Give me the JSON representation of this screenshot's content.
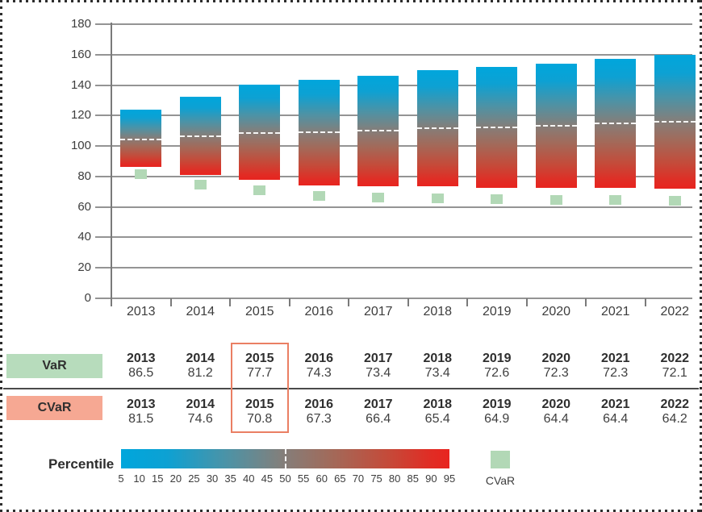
{
  "chart_data": {
    "type": "bar",
    "title": "",
    "xlabel": "",
    "ylabel": "",
    "categories": [
      "2013",
      "2014",
      "2015",
      "2016",
      "2017",
      "2018",
      "2019",
      "2020",
      "2021",
      "2022"
    ],
    "series": [
      {
        "name": "5th percentile (bar top)",
        "values": [
          124,
          132.5,
          140.5,
          143.5,
          146,
          150,
          152,
          154,
          157.5,
          160
        ]
      },
      {
        "name": "50th percentile (white dashed line)",
        "values": [
          105,
          107,
          109,
          109.5,
          110.5,
          112,
          113,
          114,
          115.5,
          116.5
        ]
      },
      {
        "name": "95th percentile / VaR (bar bottom)",
        "values": [
          86.5,
          81.2,
          77.7,
          74.3,
          73.4,
          73.4,
          72.6,
          72.3,
          72.3,
          72.1
        ]
      },
      {
        "name": "CVaR (green square marker)",
        "values": [
          81.5,
          74.6,
          70.8,
          67.3,
          66.4,
          65.4,
          64.9,
          64.4,
          64.4,
          64.2
        ]
      }
    ],
    "ylim": [
      0,
      180
    ],
    "yticks": [
      0,
      20,
      40,
      60,
      80,
      100,
      120,
      140,
      160,
      180
    ],
    "grid": true,
    "legend_position": "bottom",
    "bar_gradient_maps_percentiles": [
      5,
      95
    ],
    "colors": {
      "bar_top_blue": "#00a6dc",
      "bar_mid_gray": "#837f7b",
      "bar_bottom_red": "#e8241f",
      "cvar_marker_green": "#b2d8b6",
      "gridline_gray": "#949494"
    }
  },
  "table": {
    "rows": [
      {
        "label": "VaR",
        "swatch_color": "#b7dcbc",
        "years": [
          "2013",
          "2014",
          "2015",
          "2016",
          "2017",
          "2018",
          "2019",
          "2020",
          "2021",
          "2022"
        ],
        "values": [
          "86.5",
          "81.2",
          "77.7",
          "74.3",
          "73.4",
          "73.4",
          "72.6",
          "72.3",
          "72.3",
          "72.1"
        ]
      },
      {
        "label": "CVaR",
        "swatch_color": "#f6a893",
        "years": [
          "2013",
          "2014",
          "2015",
          "2016",
          "2017",
          "2018",
          "2019",
          "2020",
          "2021",
          "2022"
        ],
        "values": [
          "81.5",
          "74.6",
          "70.8",
          "67.3",
          "66.4",
          "65.4",
          "64.9",
          "64.4",
          "64.4",
          "64.2"
        ]
      }
    ],
    "highlight_year": "2015",
    "highlight_color": "#ea7f63"
  },
  "legend": {
    "title": "Percentile",
    "ticks": [
      "5",
      "10",
      "15",
      "20",
      "25",
      "30",
      "35",
      "40",
      "45",
      "50",
      "55",
      "60",
      "65",
      "70",
      "75",
      "80",
      "85",
      "90",
      "95"
    ],
    "dashed_marker_at": "50",
    "cvar_label": "CVaR",
    "cvar_color": "#b2d8b6"
  }
}
